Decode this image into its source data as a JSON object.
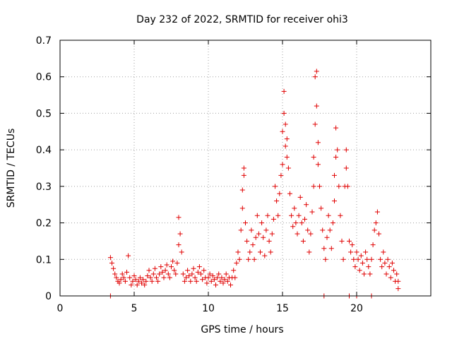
{
  "chart_data": {
    "type": "scatter",
    "title": "Day 232 of 2022, SRMTID for receiver ohi3",
    "xlabel": "GPS time / hours",
    "ylabel": "SRMTID / TECUs",
    "xlim": [
      0,
      25
    ],
    "ylim": [
      0,
      0.7
    ],
    "xticks": [
      0,
      5,
      10,
      15,
      20
    ],
    "xtick_labels": [
      "0",
      "5",
      "10",
      "15",
      "20"
    ],
    "yticks": [
      0,
      0.1,
      0.2,
      0.3,
      0.4,
      0.5,
      0.6,
      0.7
    ],
    "ytick_labels": [
      "0",
      "0.1",
      "0.2",
      "0.3",
      "0.4",
      "0.5",
      "0.6",
      "0.7"
    ],
    "grid": true,
    "marker": "+",
    "color": "#e00000",
    "series": [
      {
        "name": "SRMTID",
        "points": [
          [
            3.4,
            0.105
          ],
          [
            3.5,
            0.09
          ],
          [
            3.6,
            0.075
          ],
          [
            3.7,
            0.06
          ],
          [
            3.8,
            0.05
          ],
          [
            3.9,
            0.04
          ],
          [
            4.0,
            0.035
          ],
          [
            4.1,
            0.045
          ],
          [
            4.2,
            0.06
          ],
          [
            4.3,
            0.05
          ],
          [
            4.4,
            0.04
          ],
          [
            4.5,
            0.065
          ],
          [
            4.6,
            0.11
          ],
          [
            4.7,
            0.05
          ],
          [
            4.8,
            0.03
          ],
          [
            4.9,
            0.04
          ],
          [
            5.0,
            0.055
          ],
          [
            5.1,
            0.045
          ],
          [
            5.2,
            0.03
          ],
          [
            5.3,
            0.04
          ],
          [
            5.4,
            0.05
          ],
          [
            5.5,
            0.035
          ],
          [
            5.6,
            0.045
          ],
          [
            5.7,
            0.03
          ],
          [
            5.8,
            0.04
          ],
          [
            5.9,
            0.055
          ],
          [
            6.0,
            0.07
          ],
          [
            6.1,
            0.05
          ],
          [
            6.2,
            0.04
          ],
          [
            6.3,
            0.06
          ],
          [
            6.4,
            0.075
          ],
          [
            6.5,
            0.05
          ],
          [
            6.6,
            0.04
          ],
          [
            6.7,
            0.06
          ],
          [
            6.8,
            0.08
          ],
          [
            6.9,
            0.065
          ],
          [
            7.0,
            0.05
          ],
          [
            7.1,
            0.07
          ],
          [
            7.2,
            0.085
          ],
          [
            7.3,
            0.06
          ],
          [
            7.4,
            0.05
          ],
          [
            7.5,
            0.08
          ],
          [
            7.6,
            0.095
          ],
          [
            7.7,
            0.07
          ],
          [
            7.8,
            0.06
          ],
          [
            7.9,
            0.09
          ],
          [
            8.0,
            0.14
          ],
          [
            8.0,
            0.215
          ],
          [
            8.1,
            0.17
          ],
          [
            8.2,
            0.12
          ],
          [
            8.3,
            0.06
          ],
          [
            8.4,
            0.04
          ],
          [
            8.5,
            0.05
          ],
          [
            8.6,
            0.07
          ],
          [
            8.7,
            0.055
          ],
          [
            8.8,
            0.04
          ],
          [
            8.9,
            0.06
          ],
          [
            9.0,
            0.075
          ],
          [
            9.1,
            0.05
          ],
          [
            9.2,
            0.04
          ],
          [
            9.3,
            0.065
          ],
          [
            9.4,
            0.08
          ],
          [
            9.5,
            0.06
          ],
          [
            9.6,
            0.045
          ],
          [
            9.7,
            0.07
          ],
          [
            9.8,
            0.05
          ],
          [
            9.9,
            0.035
          ],
          [
            10.0,
            0.05
          ],
          [
            10.1,
            0.06
          ],
          [
            10.2,
            0.04
          ],
          [
            10.3,
            0.055
          ],
          [
            10.4,
            0.045
          ],
          [
            10.5,
            0.03
          ],
          [
            10.6,
            0.05
          ],
          [
            10.7,
            0.06
          ],
          [
            10.8,
            0.04
          ],
          [
            10.9,
            0.05
          ],
          [
            11.0,
            0.035
          ],
          [
            11.1,
            0.045
          ],
          [
            11.2,
            0.06
          ],
          [
            11.3,
            0.04
          ],
          [
            11.4,
            0.05
          ],
          [
            11.5,
            0.03
          ],
          [
            11.6,
            0.05
          ],
          [
            11.7,
            0.07
          ],
          [
            11.8,
            0.05
          ],
          [
            11.9,
            0.09
          ],
          [
            12.0,
            0.12
          ],
          [
            12.1,
            0.1
          ],
          [
            12.2,
            0.18
          ],
          [
            12.3,
            0.24
          ],
          [
            12.4,
            0.35
          ],
          [
            12.4,
            0.33
          ],
          [
            12.3,
            0.29
          ],
          [
            12.5,
            0.2
          ],
          [
            12.6,
            0.15
          ],
          [
            12.7,
            0.1
          ],
          [
            12.8,
            0.12
          ],
          [
            12.9,
            0.18
          ],
          [
            13.0,
            0.14
          ],
          [
            13.1,
            0.1
          ],
          [
            13.2,
            0.16
          ],
          [
            13.3,
            0.22
          ],
          [
            13.4,
            0.17
          ],
          [
            13.5,
            0.12
          ],
          [
            13.6,
            0.2
          ],
          [
            13.7,
            0.16
          ],
          [
            13.8,
            0.11
          ],
          [
            13.9,
            0.18
          ],
          [
            14.0,
            0.22
          ],
          [
            14.1,
            0.15
          ],
          [
            14.2,
            0.12
          ],
          [
            14.3,
            0.17
          ],
          [
            14.4,
            0.21
          ],
          [
            14.5,
            0.3
          ],
          [
            14.6,
            0.26
          ],
          [
            14.7,
            0.22
          ],
          [
            14.8,
            0.28
          ],
          [
            14.9,
            0.33
          ],
          [
            15.0,
            0.36
          ],
          [
            15.0,
            0.45
          ],
          [
            15.1,
            0.5
          ],
          [
            15.1,
            0.56
          ],
          [
            15.2,
            0.47
          ],
          [
            15.2,
            0.41
          ],
          [
            15.3,
            0.38
          ],
          [
            15.3,
            0.43
          ],
          [
            15.4,
            0.35
          ],
          [
            15.5,
            0.28
          ],
          [
            15.6,
            0.22
          ],
          [
            15.7,
            0.19
          ],
          [
            15.8,
            0.24
          ],
          [
            15.9,
            0.2
          ],
          [
            16.0,
            0.17
          ],
          [
            16.1,
            0.22
          ],
          [
            16.2,
            0.27
          ],
          [
            16.3,
            0.2
          ],
          [
            16.4,
            0.15
          ],
          [
            16.5,
            0.21
          ],
          [
            16.6,
            0.25
          ],
          [
            16.7,
            0.18
          ],
          [
            16.8,
            0.12
          ],
          [
            16.9,
            0.17
          ],
          [
            17.0,
            0.23
          ],
          [
            17.1,
            0.3
          ],
          [
            17.1,
            0.38
          ],
          [
            17.2,
            0.47
          ],
          [
            17.2,
            0.6
          ],
          [
            17.3,
            0.615
          ],
          [
            17.3,
            0.52
          ],
          [
            17.4,
            0.42
          ],
          [
            17.4,
            0.36
          ],
          [
            17.5,
            0.3
          ],
          [
            17.6,
            0.24
          ],
          [
            17.7,
            0.18
          ],
          [
            17.8,
            0.13
          ],
          [
            17.9,
            0.1
          ],
          [
            18.0,
            0.16
          ],
          [
            18.1,
            0.22
          ],
          [
            18.2,
            0.18
          ],
          [
            18.3,
            0.13
          ],
          [
            18.4,
            0.2
          ],
          [
            18.5,
            0.26
          ],
          [
            18.5,
            0.33
          ],
          [
            18.6,
            0.38
          ],
          [
            18.6,
            0.46
          ],
          [
            18.7,
            0.4
          ],
          [
            18.8,
            0.3
          ],
          [
            18.9,
            0.22
          ],
          [
            19.0,
            0.15
          ],
          [
            19.1,
            0.1
          ],
          [
            19.2,
            0.3
          ],
          [
            19.3,
            0.35
          ],
          [
            19.3,
            0.4
          ],
          [
            19.4,
            0.3
          ],
          [
            19.5,
            0.15
          ],
          [
            19.6,
            0.12
          ],
          [
            19.7,
            0.14
          ],
          [
            19.8,
            0.1
          ],
          [
            19.9,
            0.08
          ],
          [
            20.0,
            0.12
          ],
          [
            20.1,
            0.1
          ],
          [
            20.2,
            0.07
          ],
          [
            20.3,
            0.11
          ],
          [
            20.4,
            0.09
          ],
          [
            20.5,
            0.06
          ],
          [
            20.6,
            0.12
          ],
          [
            20.7,
            0.1
          ],
          [
            20.8,
            0.08
          ],
          [
            20.9,
            0.06
          ],
          [
            21.0,
            0.1
          ],
          [
            21.1,
            0.14
          ],
          [
            21.2,
            0.18
          ],
          [
            21.3,
            0.2
          ],
          [
            21.4,
            0.23
          ],
          [
            21.5,
            0.17
          ],
          [
            21.6,
            0.1
          ],
          [
            21.7,
            0.08
          ],
          [
            21.8,
            0.12
          ],
          [
            21.9,
            0.09
          ],
          [
            22.0,
            0.06
          ],
          [
            22.1,
            0.1
          ],
          [
            22.2,
            0.08
          ],
          [
            22.3,
            0.05
          ],
          [
            22.4,
            0.09
          ],
          [
            22.5,
            0.07
          ],
          [
            22.6,
            0.04
          ],
          [
            22.7,
            0.06
          ],
          [
            22.8,
            0.04
          ],
          [
            22.8,
            0.02
          ],
          [
            3.4,
            0.0
          ],
          [
            17.8,
            0.0
          ],
          [
            19.5,
            0.0
          ],
          [
            20.0,
            0.0
          ],
          [
            21.0,
            0.0
          ]
        ]
      }
    ]
  }
}
